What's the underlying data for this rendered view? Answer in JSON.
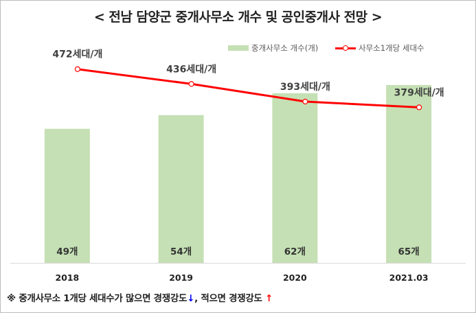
{
  "title": "< 전남 담양군 중개사무소 개수 및 공인중개사 전망 >",
  "legend": {
    "bar_label": "중개사무소 개수(개)",
    "line_label": "사무소1개당 세대수"
  },
  "footnote": {
    "text_before": "※ 중개사무소 1개당 세대수가 많으면 경쟁강도",
    "arrow_down": "↓",
    "text_middle": ", 적으면 경쟁강도 ",
    "arrow_up": "↑"
  },
  "colors": {
    "bar": "#c5e0b4",
    "line": "#ff0000",
    "arrow_down": "#0000ff",
    "arrow_up": "#ff0000"
  },
  "chart_data": {
    "type": "bar+line",
    "categories": [
      "2018",
      "2019",
      "2020",
      "2021.03"
    ],
    "series": [
      {
        "name": "중개사무소 개수(개)",
        "type": "bar",
        "axis": "left",
        "values": [
          49,
          54,
          62,
          65
        ],
        "data_labels": [
          "49개",
          "54개",
          "62개",
          "65개"
        ]
      },
      {
        "name": "사무소1개당 세대수",
        "type": "line",
        "axis": "right",
        "values": [
          472,
          436,
          393,
          379
        ],
        "data_labels": [
          "472세대/개",
          "436세대/개",
          "393세대/개",
          "379세대/개"
        ]
      }
    ],
    "bar_axis_range": [
      0,
      75
    ],
    "line_axis_range": [
      0,
      500
    ],
    "grid": false,
    "legend_position": "top-right"
  }
}
